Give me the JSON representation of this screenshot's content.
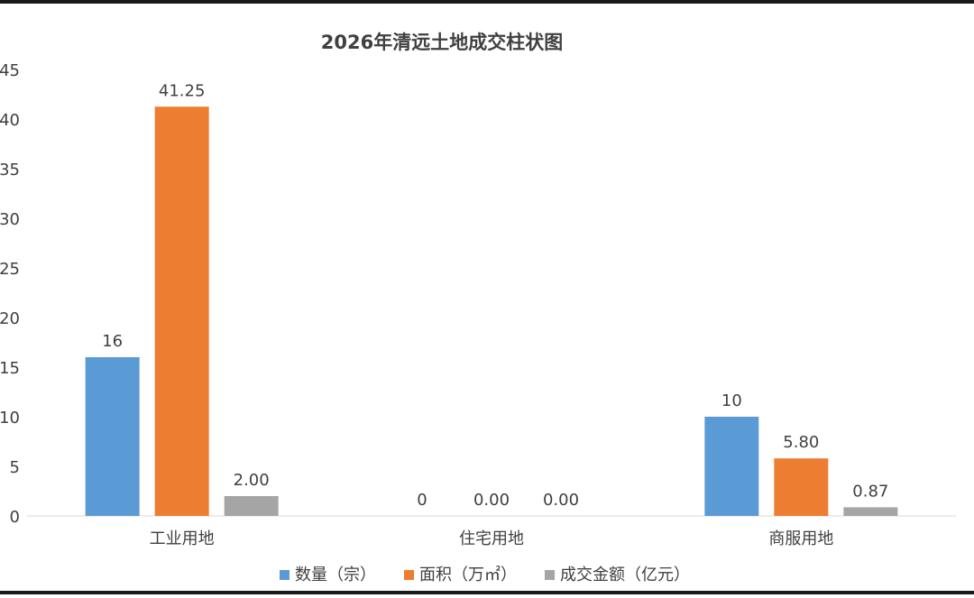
{
  "chart_data": {
    "type": "bar",
    "title": "2026年清远土地成交柱状图",
    "categories": [
      "工业用地",
      "住宅用地",
      "商服用地"
    ],
    "series": [
      {
        "name": "数量（宗）",
        "values": [
          16,
          0,
          10
        ],
        "labels": [
          "16",
          "0",
          "10"
        ],
        "color": "#5b9bd5"
      },
      {
        "name": "面积（万㎡）",
        "values": [
          41.25,
          0,
          5.8
        ],
        "labels": [
          "41.25",
          "0.00",
          "5.80"
        ],
        "color": "#ed7d31"
      },
      {
        "name": "成交金额（亿元）",
        "values": [
          2.0,
          0,
          0.87
        ],
        "labels": [
          "2.00",
          "0.00",
          "0.87"
        ],
        "color": "#a5a5a5"
      }
    ],
    "yticks": [
      "0",
      "5",
      "10",
      "15",
      "20",
      "25",
      "30",
      "35",
      "40",
      "45"
    ],
    "ylim": [
      0,
      45
    ],
    "grid": false,
    "legend": "bottom"
  }
}
